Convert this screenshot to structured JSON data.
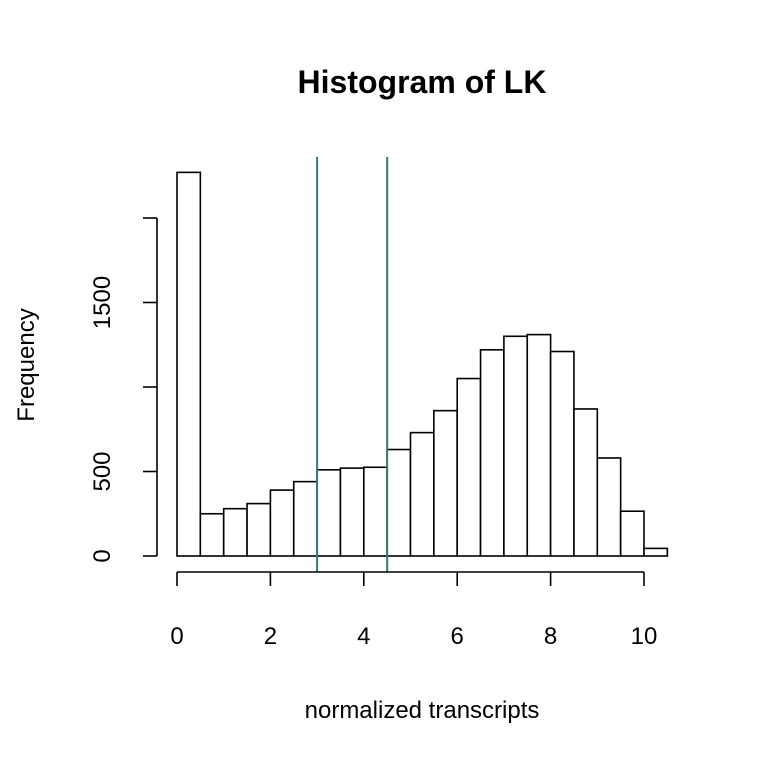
{
  "chart_data": {
    "type": "bar",
    "title": "Histogram of LK",
    "xlabel": "normalized transcripts",
    "ylabel": "Frequency",
    "bin_width": 0.5,
    "bins_start": [
      0,
      0.5,
      1,
      1.5,
      2,
      2.5,
      3,
      3.5,
      4,
      4.5,
      5,
      5.5,
      6,
      6.5,
      7,
      7.5,
      8,
      8.5,
      9,
      9.5,
      10
    ],
    "values": [
      2270,
      250,
      280,
      310,
      390,
      440,
      510,
      520,
      525,
      630,
      730,
      860,
      1050,
      1220,
      1300,
      1310,
      1210,
      870,
      580,
      265,
      45
    ],
    "xlim": [
      0,
      10.5
    ],
    "ylim": [
      0,
      2000
    ],
    "x_ticks": [
      0,
      2,
      4,
      6,
      8,
      10
    ],
    "x_tick_labels": [
      "0",
      "2",
      "4",
      "6",
      "8",
      "10"
    ],
    "y_ticks": [
      0,
      500,
      1000,
      1500,
      2000
    ],
    "y_tick_labels": [
      "0",
      "500",
      "",
      "1500",
      ""
    ],
    "vlines": [
      3.0,
      4.5
    ],
    "vline_color": "#2e8077",
    "bar_fill": "#ffffff",
    "bar_stroke": "#000000"
  }
}
